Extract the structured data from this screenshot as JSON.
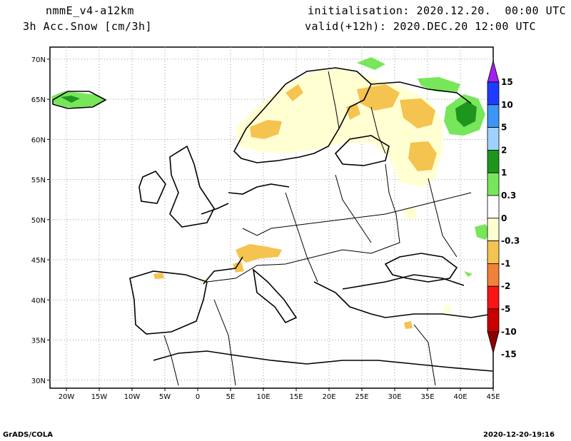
{
  "header": {
    "model": "nmmE_v4-a12km",
    "field": "3h Acc.Snow [cm/3h]",
    "initialisation": "initialisation: 2020.12.20.  00:00 UTC",
    "valid": "valid(+12h): 2020.DEC.20 12:00 UTC"
  },
  "footer": {
    "left": "GrADS/COLA",
    "right": "2020-12-20-19:16"
  },
  "map": {
    "lat_labels": [
      "70N",
      "65N",
      "60N",
      "55N",
      "50N",
      "45N",
      "40N",
      "35N",
      "30N"
    ],
    "lon_labels": [
      "20W",
      "15W",
      "10W",
      "5W",
      "0",
      "5E",
      "10E",
      "15E",
      "20E",
      "25E",
      "30E",
      "35E",
      "40E",
      "45E"
    ],
    "grid": true
  },
  "colorbar": {
    "labels": [
      "15",
      "10",
      "5",
      "2",
      "1",
      "0.3",
      "0",
      "-0.3",
      "-1",
      "-2",
      "-5",
      "-10",
      "-15"
    ],
    "colors": [
      "#a020f0",
      "#1e3cff",
      "#3c96f5",
      "#a0d2ff",
      "#1e961e",
      "#78e65a",
      "#ffffff",
      "#ffffd2",
      "#f5c350",
      "#f0823c",
      "#fa1414",
      "#c80000",
      "#8c0000"
    ]
  }
}
